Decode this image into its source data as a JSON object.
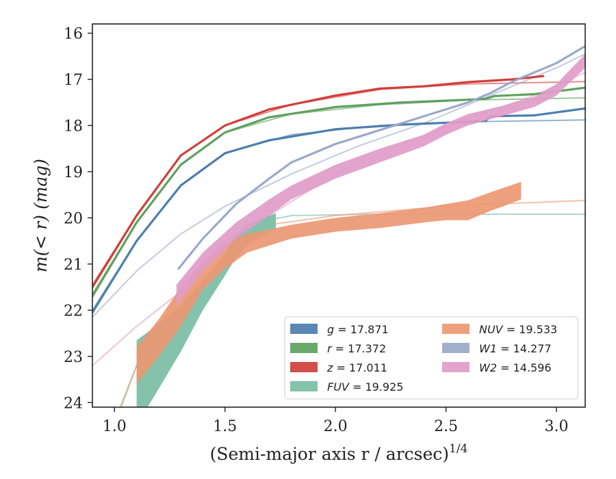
{
  "chart_data": {
    "type": "line",
    "xlabel": "(Semi-major axis r / arcsec)",
    "xlabel_exponent": "1/4",
    "ylabel": "m(< r) (mag)",
    "xlim": [
      0.9,
      3.13
    ],
    "ylim": [
      24.1,
      15.8
    ],
    "y_inverted": true,
    "grid": false,
    "legend_position": "lower-right",
    "xticks": [
      1.0,
      1.5,
      2.0,
      2.5,
      3.0
    ],
    "xtick_labels": [
      "1.0",
      "1.5",
      "2.0",
      "2.5",
      "3.0"
    ],
    "yticks": [
      16,
      17,
      18,
      19,
      20,
      21,
      22,
      23,
      24
    ],
    "ytick_labels": [
      "16",
      "17",
      "18",
      "19",
      "20",
      "21",
      "22",
      "23",
      "24"
    ],
    "series": [
      {
        "name": "g = 17.871",
        "color": "#4c7ead",
        "observed": [
          [
            0.9,
            22.05
          ],
          [
            1.1,
            20.5
          ],
          [
            1.3,
            19.3
          ],
          [
            1.5,
            18.6
          ],
          [
            1.7,
            18.32
          ],
          [
            2.0,
            18.08
          ],
          [
            2.3,
            17.98
          ],
          [
            2.6,
            17.92
          ],
          [
            2.68,
            17.9
          ],
          [
            2.7,
            17.8
          ],
          [
            2.9,
            17.78
          ],
          [
            3.13,
            17.63
          ]
        ],
        "model": [
          [
            0.9,
            22.0
          ],
          [
            1.1,
            20.5
          ],
          [
            1.3,
            19.3
          ],
          [
            1.5,
            18.6
          ],
          [
            1.8,
            18.2
          ],
          [
            2.2,
            18.0
          ],
          [
            2.6,
            17.92
          ],
          [
            3.13,
            17.88
          ]
        ]
      },
      {
        "name": "r = 17.372",
        "color": "#5ea15e",
        "observed": [
          [
            0.9,
            21.7
          ],
          [
            1.1,
            20.1
          ],
          [
            1.3,
            18.85
          ],
          [
            1.5,
            18.15
          ],
          [
            1.7,
            17.82
          ],
          [
            2.0,
            17.6
          ],
          [
            2.3,
            17.5
          ],
          [
            2.6,
            17.44
          ],
          [
            2.68,
            17.42
          ],
          [
            2.72,
            17.36
          ],
          [
            2.9,
            17.32
          ],
          [
            3.13,
            17.18
          ]
        ],
        "model": [
          [
            0.9,
            21.65
          ],
          [
            1.1,
            20.1
          ],
          [
            1.3,
            18.85
          ],
          [
            1.5,
            18.15
          ],
          [
            1.8,
            17.75
          ],
          [
            2.2,
            17.55
          ],
          [
            2.6,
            17.45
          ],
          [
            3.13,
            17.4
          ]
        ]
      },
      {
        "name": "z = 17.011",
        "color": "#d03f3c",
        "observed": [
          [
            0.9,
            21.5
          ],
          [
            1.1,
            19.95
          ],
          [
            1.3,
            18.65
          ],
          [
            1.5,
            18.0
          ],
          [
            1.7,
            17.65
          ],
          [
            2.0,
            17.35
          ],
          [
            2.2,
            17.2
          ],
          [
            2.4,
            17.15
          ],
          [
            2.6,
            17.06
          ],
          [
            2.8,
            17.0
          ],
          [
            2.94,
            16.93
          ]
        ],
        "model": [
          [
            0.9,
            21.45
          ],
          [
            1.1,
            19.95
          ],
          [
            1.3,
            18.65
          ],
          [
            1.5,
            18.0
          ],
          [
            1.8,
            17.55
          ],
          [
            2.2,
            17.22
          ],
          [
            2.6,
            17.1
          ],
          [
            3.13,
            17.05
          ]
        ]
      },
      {
        "name": "FUV = 19.925",
        "color": "#7bbda5",
        "band": [
          [
            1.1,
            22.65,
            24.5
          ],
          [
            1.2,
            22.3,
            23.7
          ],
          [
            1.3,
            21.9,
            22.9
          ],
          [
            1.4,
            21.35,
            22.0
          ],
          [
            1.5,
            20.8,
            21.25
          ],
          [
            1.55,
            20.35,
            20.85
          ],
          [
            1.6,
            20.15,
            20.6
          ],
          [
            1.7,
            19.95,
            20.3
          ],
          [
            1.73,
            19.9,
            20.25
          ]
        ],
        "model": [
          [
            1.0,
            24.5
          ],
          [
            1.1,
            23.2
          ],
          [
            1.3,
            21.6
          ],
          [
            1.5,
            20.5
          ],
          [
            1.7,
            20.05
          ],
          [
            1.8,
            19.95
          ],
          [
            2.2,
            19.92
          ],
          [
            3.13,
            19.92
          ]
        ]
      },
      {
        "name": "NUV = 19.533",
        "color": "#ec9872",
        "band": [
          [
            1.1,
            22.8,
            23.6
          ],
          [
            1.2,
            22.2,
            23.0
          ],
          [
            1.3,
            21.5,
            22.35
          ],
          [
            1.4,
            20.95,
            21.55
          ],
          [
            1.5,
            20.55,
            21.1
          ],
          [
            1.6,
            20.35,
            20.75
          ],
          [
            1.8,
            20.15,
            20.45
          ],
          [
            2.0,
            20.0,
            20.3
          ],
          [
            2.2,
            19.9,
            20.22
          ],
          [
            2.4,
            19.78,
            20.1
          ],
          [
            2.5,
            19.7,
            20.05
          ],
          [
            2.6,
            19.62,
            20.05
          ],
          [
            2.7,
            19.45,
            19.85
          ],
          [
            2.76,
            19.35,
            19.75
          ],
          [
            2.84,
            19.22,
            19.6
          ]
        ],
        "model": [
          [
            1.0,
            24.4
          ],
          [
            1.1,
            23.2
          ],
          [
            1.3,
            21.6
          ],
          [
            1.5,
            20.6
          ],
          [
            1.7,
            20.15
          ],
          [
            2.0,
            19.95
          ],
          [
            2.5,
            19.75
          ],
          [
            3.13,
            19.62
          ]
        ]
      },
      {
        "name": "W1 = 14.277",
        "color": "#9aa9c9",
        "observed": [
          [
            1.29,
            21.1
          ],
          [
            1.4,
            20.45
          ],
          [
            1.55,
            19.7
          ],
          [
            1.7,
            19.15
          ],
          [
            1.8,
            18.8
          ],
          [
            2.0,
            18.4
          ],
          [
            2.2,
            18.1
          ],
          [
            2.4,
            17.8
          ],
          [
            2.6,
            17.5
          ],
          [
            2.7,
            17.3
          ],
          [
            2.8,
            17.05
          ],
          [
            2.9,
            16.85
          ],
          [
            3.0,
            16.65
          ],
          [
            3.13,
            16.28
          ]
        ],
        "model": [
          [
            0.9,
            22.15
          ],
          [
            1.1,
            21.15
          ],
          [
            1.3,
            20.35
          ],
          [
            1.5,
            19.75
          ],
          [
            1.8,
            19.05
          ],
          [
            2.1,
            18.45
          ],
          [
            2.4,
            17.95
          ],
          [
            2.7,
            17.35
          ],
          [
            3.0,
            16.75
          ],
          [
            3.13,
            16.45
          ]
        ]
      },
      {
        "name": "W2 = 14.596",
        "color": "#e09cc8",
        "band": [
          [
            1.28,
            21.45,
            21.9
          ],
          [
            1.4,
            20.75,
            21.15
          ],
          [
            1.55,
            20.1,
            20.45
          ],
          [
            1.7,
            19.6,
            19.95
          ],
          [
            1.8,
            19.3,
            19.6
          ],
          [
            2.0,
            18.85,
            19.15
          ],
          [
            2.2,
            18.5,
            18.8
          ],
          [
            2.4,
            18.2,
            18.45
          ],
          [
            2.5,
            17.95,
            18.2
          ],
          [
            2.6,
            17.75,
            18.0
          ],
          [
            2.75,
            17.58,
            17.8
          ],
          [
            2.9,
            17.38,
            17.6
          ],
          [
            3.0,
            17.1,
            17.35
          ],
          [
            3.13,
            16.45,
            16.75
          ]
        ],
        "model": [
          [
            0.9,
            23.2
          ],
          [
            1.1,
            22.35
          ],
          [
            1.3,
            21.6
          ],
          [
            1.5,
            20.65
          ],
          [
            1.7,
            19.95
          ],
          [
            2.0,
            19.05
          ],
          [
            2.3,
            18.4
          ],
          [
            2.6,
            17.85
          ],
          [
            2.9,
            17.35
          ],
          [
            3.13,
            16.85
          ]
        ]
      }
    ]
  }
}
